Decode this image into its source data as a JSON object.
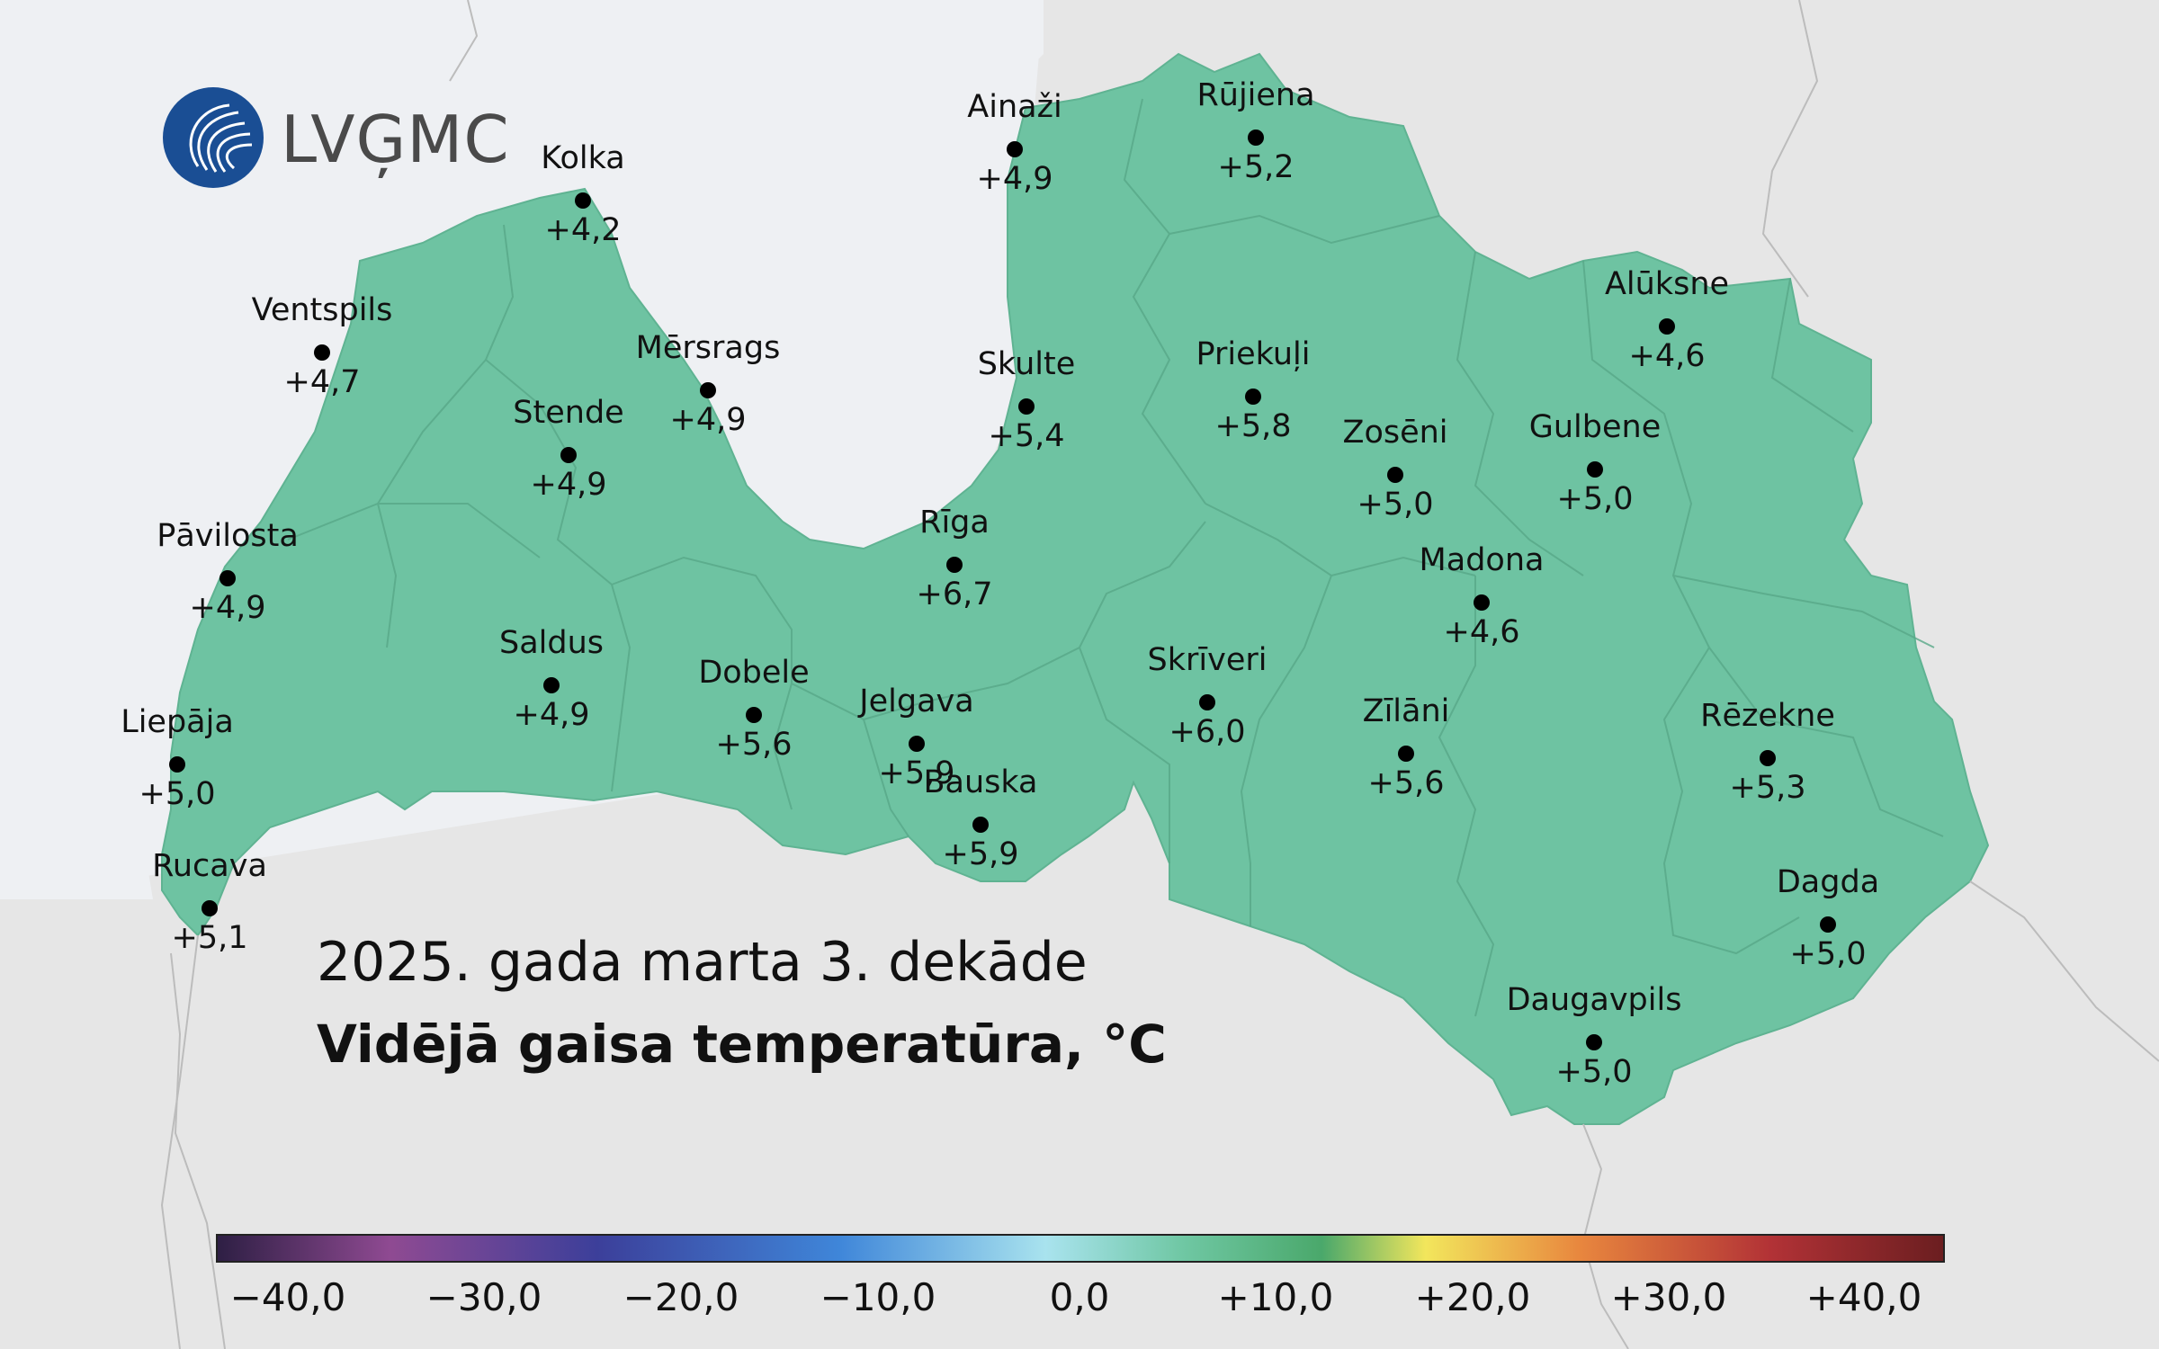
{
  "logo": {
    "text": "LVĢMC"
  },
  "title": {
    "period": "2025. gada marta 3. dekāde",
    "subject": "Vidējā gaisa temperatūra, °C"
  },
  "colors": {
    "land": "#6ec3a2",
    "sea": "#eef0f3",
    "neighbors": "#e6e6e6",
    "logo": "#1a4e94"
  },
  "stations": [
    {
      "id": "kolka",
      "name": "Kolka",
      "value": "+4,2"
    },
    {
      "id": "ventspils",
      "name": "Ventspils",
      "value": "+4,7"
    },
    {
      "id": "mersrags",
      "name": "Mērsrags",
      "value": "+4,9"
    },
    {
      "id": "stende",
      "name": "Stende",
      "value": "+4,9"
    },
    {
      "id": "pavilosta",
      "name": "Pāvilosta",
      "value": "+4,9"
    },
    {
      "id": "saldus",
      "name": "Saldus",
      "value": "+4,9"
    },
    {
      "id": "dobele",
      "name": "Dobele",
      "value": "+5,6"
    },
    {
      "id": "liepaja",
      "name": "Liepāja",
      "value": "+5,0"
    },
    {
      "id": "rucava",
      "name": "Rucava",
      "value": "+5,1"
    },
    {
      "id": "ainazi",
      "name": "Ainaži",
      "value": "+4,9"
    },
    {
      "id": "rujiena",
      "name": "Rūjiena",
      "value": "+5,2"
    },
    {
      "id": "skulte",
      "name": "Skulte",
      "value": "+5,4"
    },
    {
      "id": "riga",
      "name": "Rīga",
      "value": "+6,7"
    },
    {
      "id": "jelgava",
      "name": "Jelgava",
      "value": "+5,9"
    },
    {
      "id": "bauska",
      "name": "Bauska",
      "value": "+5,9"
    },
    {
      "id": "priekuli",
      "name": "Priekuļi",
      "value": "+5,8"
    },
    {
      "id": "skriveri",
      "name": "Skrīveri",
      "value": "+6,0"
    },
    {
      "id": "zoseni",
      "name": "Zosēni",
      "value": "+5,0"
    },
    {
      "id": "gulbene",
      "name": "Gulbene",
      "value": "+5,0"
    },
    {
      "id": "aluksne",
      "name": "Alūksne",
      "value": "+4,6"
    },
    {
      "id": "madona",
      "name": "Madona",
      "value": "+4,6"
    },
    {
      "id": "zilani",
      "name": "Zīlāni",
      "value": "+5,6"
    },
    {
      "id": "rezekne",
      "name": "Rēzekne",
      "value": "+5,3"
    },
    {
      "id": "dagda",
      "name": "Dagda",
      "value": "+5,0"
    },
    {
      "id": "daugavpils",
      "name": "Daugavpils",
      "value": "+5,0"
    }
  ],
  "colorbar": {
    "ticks": [
      "−40,0",
      "−30,0",
      "−20,0",
      "−10,0",
      "0,0",
      "+10,0",
      "+20,0",
      "+30,0",
      "+40,0"
    ]
  }
}
